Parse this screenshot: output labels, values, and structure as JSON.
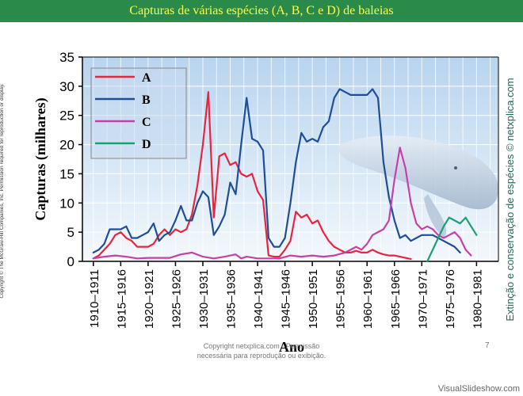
{
  "header": {
    "title": "Capturas de várias espécies (A, B, C e D) de baleias"
  },
  "side_left_text": "Copyright © The McGraw-Hill Companies, Inc. Permission required for reproduction or display.",
  "side_right_text": "Extinção e conservação de espécies © netxplica.com",
  "footer": {
    "line1": "Copyright netxplica.com - Permissão",
    "line2": "necessária para reprodução ou exibição.",
    "page_number": "7"
  },
  "watermark": "VisualSlideshow.com",
  "colors": {
    "A": "#e8253f",
    "B": "#1f4e96",
    "C": "#c442a8",
    "D": "#1aa070"
  },
  "chart_data": {
    "type": "line",
    "xlabel": "Ano",
    "ylabel": "Capturas (milhares)",
    "ylim": [
      0,
      35
    ],
    "yticks": [
      0,
      5,
      10,
      15,
      20,
      25,
      30,
      35
    ],
    "xlim": [
      1908,
      1984
    ],
    "grid": true,
    "legend_position": "top-left",
    "x_tick_labels": [
      "1910–1911",
      "1915–1916",
      "1920–1921",
      "1925–1926",
      "1930–1931",
      "1935–1936",
      "1940–1941",
      "1945–1946",
      "1950–1951",
      "1955–1956",
      "1960–1961",
      "1965–1966",
      "1970–1971",
      "1975–1976",
      "1980–1981"
    ],
    "x_tick_positions": [
      1910,
      1915,
      1920,
      1925,
      1930,
      1935,
      1940,
      1945,
      1950,
      1955,
      1960,
      1965,
      1970,
      1975,
      1980
    ],
    "series": [
      {
        "name": "A",
        "color": "#e8253f",
        "points": [
          [
            1910,
            0.5
          ],
          [
            1911,
            1
          ],
          [
            1912,
            2
          ],
          [
            1913,
            3
          ],
          [
            1914,
            4.5
          ],
          [
            1915,
            5
          ],
          [
            1916,
            4
          ],
          [
            1917,
            3.5
          ],
          [
            1918,
            2.5
          ],
          [
            1919,
            2.5
          ],
          [
            1920,
            2.5
          ],
          [
            1921,
            3
          ],
          [
            1922,
            4.5
          ],
          [
            1923,
            5.5
          ],
          [
            1924,
            4.5
          ],
          [
            1925,
            5.5
          ],
          [
            1926,
            5
          ],
          [
            1927,
            5.5
          ],
          [
            1928,
            8
          ],
          [
            1929,
            13
          ],
          [
            1930,
            20
          ],
          [
            1931,
            29
          ],
          [
            1932,
            7.5
          ],
          [
            1933,
            18
          ],
          [
            1934,
            18.5
          ],
          [
            1935,
            16.5
          ],
          [
            1936,
            17
          ],
          [
            1937,
            15
          ],
          [
            1938,
            14.5
          ],
          [
            1939,
            15
          ],
          [
            1940,
            12
          ],
          [
            1941,
            10.5
          ],
          [
            1942,
            1
          ],
          [
            1943,
            0.8
          ],
          [
            1944,
            0.8
          ],
          [
            1945,
            2
          ],
          [
            1946,
            3.5
          ],
          [
            1947,
            8.5
          ],
          [
            1948,
            7.5
          ],
          [
            1949,
            8
          ],
          [
            1950,
            6.5
          ],
          [
            1951,
            7
          ],
          [
            1952,
            5
          ],
          [
            1953,
            3.5
          ],
          [
            1954,
            2.5
          ],
          [
            1955,
            2
          ],
          [
            1956,
            1.5
          ],
          [
            1957,
            1.5
          ],
          [
            1958,
            1.8
          ],
          [
            1959,
            1.5
          ],
          [
            1960,
            1.5
          ],
          [
            1961,
            2
          ],
          [
            1962,
            1.5
          ],
          [
            1963,
            1.2
          ],
          [
            1964,
            1
          ],
          [
            1965,
            1
          ],
          [
            1966,
            0.8
          ],
          [
            1967,
            0.6
          ],
          [
            1968,
            0.4
          ]
        ]
      },
      {
        "name": "B",
        "color": "#1f4e96",
        "points": [
          [
            1910,
            1.5
          ],
          [
            1911,
            2
          ],
          [
            1912,
            3
          ],
          [
            1913,
            5.5
          ],
          [
            1914,
            5.5
          ],
          [
            1915,
            5.5
          ],
          [
            1916,
            6
          ],
          [
            1917,
            4
          ],
          [
            1918,
            4
          ],
          [
            1919,
            4.5
          ],
          [
            1920,
            5
          ],
          [
            1921,
            6.5
          ],
          [
            1922,
            3.5
          ],
          [
            1923,
            4.5
          ],
          [
            1924,
            5
          ],
          [
            1925,
            7
          ],
          [
            1926,
            9.5
          ],
          [
            1927,
            7
          ],
          [
            1928,
            7
          ],
          [
            1929,
            10
          ],
          [
            1930,
            12
          ],
          [
            1931,
            11
          ],
          [
            1932,
            4.5
          ],
          [
            1933,
            6
          ],
          [
            1934,
            8
          ],
          [
            1935,
            13.5
          ],
          [
            1936,
            11.5
          ],
          [
            1937,
            20
          ],
          [
            1938,
            28
          ],
          [
            1939,
            21
          ],
          [
            1940,
            20.5
          ],
          [
            1941,
            19
          ],
          [
            1942,
            4
          ],
          [
            1943,
            2.5
          ],
          [
            1944,
            2.5
          ],
          [
            1945,
            4
          ],
          [
            1946,
            10
          ],
          [
            1947,
            17
          ],
          [
            1948,
            22
          ],
          [
            1949,
            20.5
          ],
          [
            1950,
            21
          ],
          [
            1951,
            20.5
          ],
          [
            1952,
            23
          ],
          [
            1953,
            24
          ],
          [
            1954,
            28
          ],
          [
            1955,
            29.5
          ],
          [
            1956,
            29
          ],
          [
            1957,
            28.5
          ],
          [
            1958,
            28.5
          ],
          [
            1959,
            28.5
          ],
          [
            1960,
            28.5
          ],
          [
            1961,
            29.5
          ],
          [
            1962,
            28
          ],
          [
            1963,
            17
          ],
          [
            1964,
            11
          ],
          [
            1965,
            7
          ],
          [
            1966,
            4
          ],
          [
            1967,
            4.5
          ],
          [
            1968,
            3.5
          ],
          [
            1969,
            4
          ],
          [
            1970,
            4.5
          ],
          [
            1971,
            4.5
          ],
          [
            1972,
            4.5
          ],
          [
            1973,
            4
          ],
          [
            1974,
            3.5
          ],
          [
            1975,
            3
          ],
          [
            1976,
            2.5
          ],
          [
            1977,
            1.5
          ]
        ]
      },
      {
        "name": "C",
        "color": "#c442a8",
        "points": [
          [
            1910,
            0.5
          ],
          [
            1912,
            0.8
          ],
          [
            1914,
            1
          ],
          [
            1916,
            0.8
          ],
          [
            1918,
            0.5
          ],
          [
            1920,
            0.6
          ],
          [
            1922,
            0.6
          ],
          [
            1924,
            0.6
          ],
          [
            1926,
            1.2
          ],
          [
            1928,
            1.5
          ],
          [
            1930,
            0.8
          ],
          [
            1932,
            0.5
          ],
          [
            1934,
            0.8
          ],
          [
            1936,
            1.2
          ],
          [
            1937,
            0.5
          ],
          [
            1938,
            0.8
          ],
          [
            1940,
            0.5
          ],
          [
            1942,
            0.5
          ],
          [
            1944,
            0.5
          ],
          [
            1946,
            1
          ],
          [
            1948,
            0.8
          ],
          [
            1950,
            1
          ],
          [
            1952,
            0.8
          ],
          [
            1954,
            1
          ],
          [
            1956,
            1.5
          ],
          [
            1958,
            2.5
          ],
          [
            1959,
            2
          ],
          [
            1960,
            3
          ],
          [
            1961,
            4.5
          ],
          [
            1962,
            5
          ],
          [
            1963,
            5.5
          ],
          [
            1964,
            7
          ],
          [
            1965,
            14
          ],
          [
            1966,
            19.5
          ],
          [
            1967,
            16
          ],
          [
            1968,
            10
          ],
          [
            1969,
            6.5
          ],
          [
            1970,
            5.5
          ],
          [
            1971,
            6
          ],
          [
            1972,
            5.5
          ],
          [
            1973,
            4.5
          ],
          [
            1974,
            4
          ],
          [
            1975,
            4.5
          ],
          [
            1976,
            5
          ],
          [
            1977,
            4
          ],
          [
            1978,
            2
          ],
          [
            1979,
            1
          ]
        ]
      },
      {
        "name": "D",
        "color": "#1aa070",
        "points": [
          [
            1971,
            0
          ],
          [
            1972,
            2
          ],
          [
            1973,
            4
          ],
          [
            1974,
            6
          ],
          [
            1975,
            7.5
          ],
          [
            1976,
            7
          ],
          [
            1977,
            6.5
          ],
          [
            1978,
            7.5
          ],
          [
            1979,
            6
          ],
          [
            1980,
            4.5
          ]
        ]
      }
    ]
  }
}
